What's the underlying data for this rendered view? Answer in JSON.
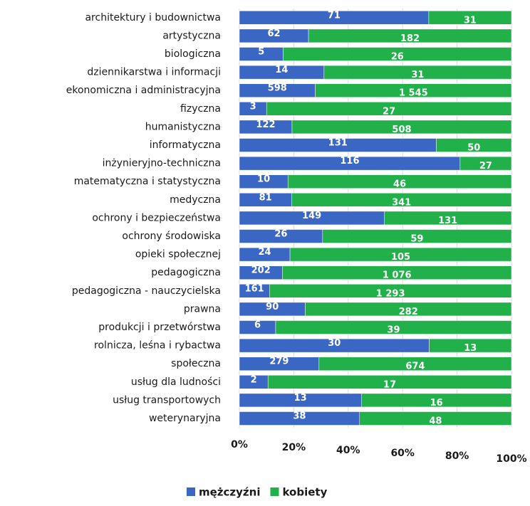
{
  "chart_data": {
    "type": "bar",
    "stacked": "percent",
    "orientation": "horizontal",
    "categories": [
      "architektury i budownictwa",
      "artystyczna",
      "biologiczna",
      "dziennikarstwa i informacji",
      "ekonomiczna i administracyjna",
      "fizyczna",
      "humanistyczna",
      "informatyczna",
      "inżynieryjno-techniczna",
      "matematyczna i statystyczna",
      "medyczna",
      "ochrony i bezpieczeństwa",
      "ochrony środowiska",
      "opieki społecznej",
      "pedagogiczna",
      "pedagogiczna - nauczycielska",
      "prawna",
      "produkcji i przetwórstwa",
      "rolnicza, leśna i rybactwa",
      "społeczna",
      "usług dla ludności",
      "usług transportowych",
      "weterynaryjna"
    ],
    "series": [
      {
        "name": "mężczyźni",
        "color": "#3a66c4",
        "values": [
          71,
          62,
          5,
          14,
          598,
          3,
          122,
          131,
          116,
          10,
          81,
          149,
          26,
          24,
          202,
          161,
          90,
          6,
          30,
          279,
          2,
          13,
          38
        ],
        "value_labels": [
          "71",
          "62",
          "5",
          "14",
          "598",
          "3",
          "122",
          "131",
          "116",
          "10",
          "81",
          "149",
          "26",
          "24",
          "202",
          "161",
          "90",
          "6",
          "30",
          "279",
          "2",
          "13",
          "38"
        ]
      },
      {
        "name": "kobiety",
        "color": "#22b04a",
        "values": [
          31,
          182,
          26,
          31,
          1545,
          27,
          508,
          50,
          27,
          46,
          341,
          131,
          59,
          105,
          1076,
          1293,
          282,
          39,
          13,
          674,
          17,
          16,
          48
        ],
        "value_labels": [
          "31",
          "182",
          "26",
          "31",
          "1 545",
          "27",
          "508",
          "50",
          "27",
          "46",
          "341",
          "131",
          "59",
          "105",
          "1 076",
          "1 293",
          "282",
          "39",
          "13",
          "674",
          "17",
          "16",
          "48"
        ]
      }
    ],
    "xlim": [
      0,
      100
    ],
    "xticks": [
      {
        "value": 0,
        "label": "0%"
      },
      {
        "value": 20,
        "label": "20%"
      },
      {
        "value": 40,
        "label": "40%"
      },
      {
        "value": 60,
        "label": "60%"
      },
      {
        "value": 80,
        "label": "80%"
      },
      {
        "value": 100,
        "label": "100%"
      }
    ],
    "legend": "bottom"
  }
}
